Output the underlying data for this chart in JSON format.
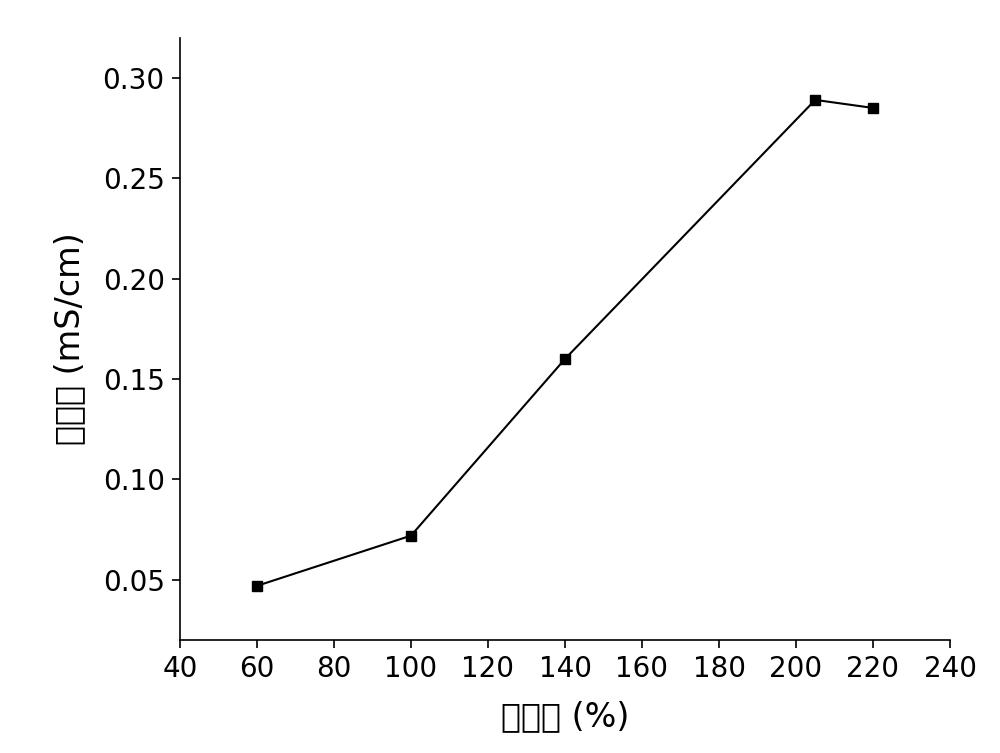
{
  "x": [
    60,
    100,
    140,
    205,
    220
  ],
  "y": [
    0.047,
    0.072,
    0.16,
    0.289,
    0.285
  ],
  "xlabel": "吸液率 (%)",
  "ylabel": "电导率 (mS/cm)",
  "xlim": [
    40,
    240
  ],
  "ylim": [
    0.02,
    0.32
  ],
  "xticks": [
    40,
    60,
    80,
    100,
    120,
    140,
    160,
    180,
    200,
    220,
    240
  ],
  "yticks": [
    0.05,
    0.1,
    0.15,
    0.2,
    0.25,
    0.3
  ],
  "marker": "s",
  "marker_size": 7,
  "line_color": "#000000",
  "marker_color": "#000000",
  "background_color": "#ffffff",
  "label_fontsize": 24,
  "tick_fontsize": 20,
  "linewidth": 1.5
}
